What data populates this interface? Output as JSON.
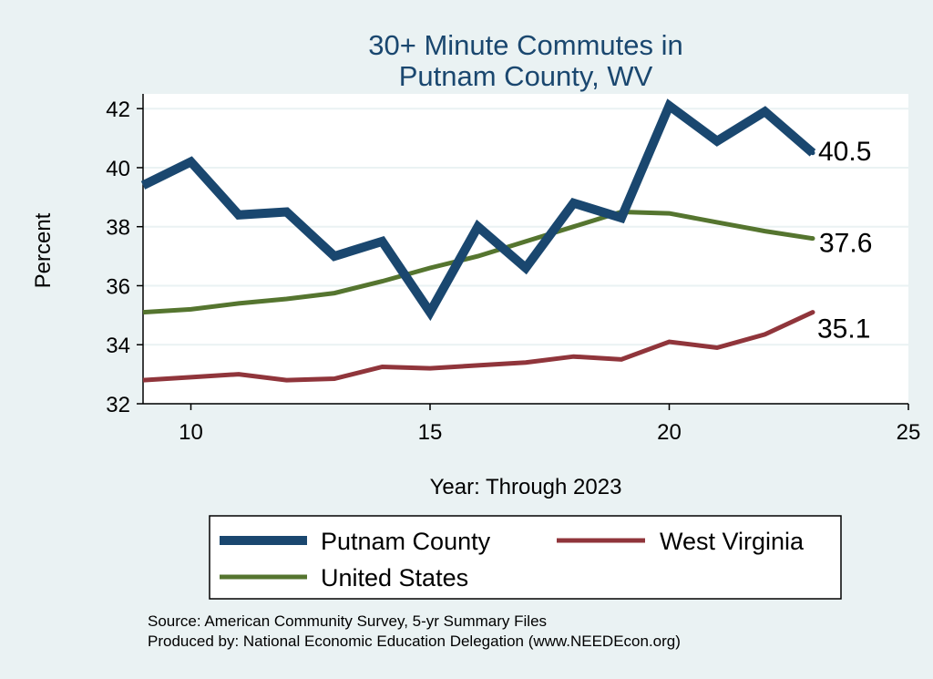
{
  "chart_data": {
    "type": "line",
    "title": [
      "30+ Minute Commutes in",
      "Putnam County, WV"
    ],
    "xlabel": "Year: Through 2023",
    "ylabel": "Percent",
    "xlim": [
      9,
      25
    ],
    "ylim": [
      32,
      42.5
    ],
    "xticks": [
      10,
      15,
      20,
      25
    ],
    "yticks": [
      32,
      34,
      36,
      38,
      40,
      42
    ],
    "grid": true,
    "legend_position": "bottom",
    "series": [
      {
        "name": "Putnam County",
        "color": "#1a476f",
        "x": [
          9,
          10,
          11,
          12,
          13,
          14,
          15,
          16,
          17,
          18,
          19,
          20,
          21,
          22,
          23
        ],
        "values": [
          39.4,
          40.2,
          38.4,
          38.5,
          37.0,
          37.5,
          35.1,
          38.0,
          36.6,
          38.8,
          38.3,
          42.1,
          40.9,
          41.9,
          40.5
        ],
        "end_label": "40.5"
      },
      {
        "name": "West Virginia",
        "color": "#90353b",
        "x": [
          9,
          10,
          11,
          12,
          13,
          14,
          15,
          16,
          17,
          18,
          19,
          20,
          21,
          22,
          23
        ],
        "values": [
          32.8,
          32.9,
          33.0,
          32.8,
          32.85,
          33.25,
          33.2,
          33.3,
          33.4,
          33.6,
          33.5,
          34.1,
          33.9,
          34.35,
          35.1
        ],
        "end_label": "35.1"
      },
      {
        "name": "United States",
        "color": "#55752f",
        "x": [
          9,
          10,
          11,
          12,
          13,
          14,
          15,
          16,
          17,
          18,
          19,
          20,
          21,
          22,
          23
        ],
        "values": [
          35.1,
          35.2,
          35.4,
          35.55,
          35.75,
          36.15,
          36.6,
          37.0,
          37.5,
          38.0,
          38.5,
          38.45,
          38.15,
          37.85,
          37.6
        ],
        "end_label": "37.6"
      }
    ],
    "notes": [
      "Source: American Community Survey, 5-yr Summary Files",
      "Produced by: National Economic Education Delegation (www.NEEDEcon.org)"
    ]
  }
}
